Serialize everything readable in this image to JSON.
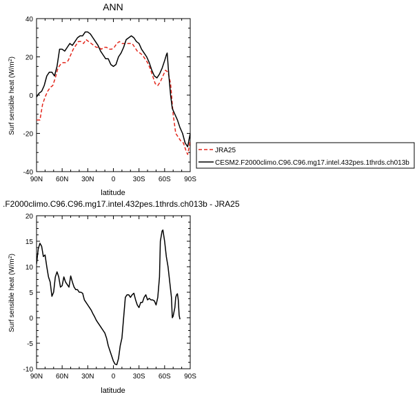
{
  "chart_data": [
    {
      "type": "line",
      "title": "ANN",
      "xlabel": "latitude",
      "ylabel": "Surf sensible heat (W/m²)",
      "xlim": [
        -90,
        90
      ],
      "ylim": [
        -40,
        40
      ],
      "x_ticks": [
        "90N",
        "60N",
        "30N",
        "0",
        "30S",
        "60S",
        "90S"
      ],
      "y_ticks": [
        "-40",
        "-20",
        "0",
        "20",
        "40"
      ],
      "legend_position": "right",
      "series": [
        {
          "name": "JRA25",
          "color": "#e3261b",
          "dash": "dashed",
          "points": [
            [
              -90,
              -13
            ],
            [
              -86,
              -13
            ],
            [
              -83,
              -5
            ],
            [
              -80,
              -1
            ],
            [
              -77,
              2
            ],
            [
              -74,
              4
            ],
            [
              -71,
              5
            ],
            [
              -68,
              9
            ],
            [
              -65,
              14
            ],
            [
              -62,
              16
            ],
            [
              -59,
              17
            ],
            [
              -56,
              17
            ],
            [
              -53,
              18
            ],
            [
              -50,
              21
            ],
            [
              -47,
              24
            ],
            [
              -44,
              26
            ],
            [
              -41,
              28
            ],
            [
              -38,
              28
            ],
            [
              -35,
              27
            ],
            [
              -32,
              29
            ],
            [
              -29,
              28
            ],
            [
              -26,
              27
            ],
            [
              -23,
              26
            ],
            [
              -20,
              25
            ],
            [
              -17,
              25
            ],
            [
              -14,
              24
            ],
            [
              -11,
              25
            ],
            [
              -8,
              25
            ],
            [
              -5,
              24
            ],
            [
              -2,
              24
            ],
            [
              1,
              25
            ],
            [
              4,
              27
            ],
            [
              7,
              28
            ],
            [
              10,
              27
            ],
            [
              13,
              27
            ],
            [
              16,
              27
            ],
            [
              19,
              27
            ],
            [
              22,
              27
            ],
            [
              25,
              25
            ],
            [
              28,
              23
            ],
            [
              31,
              22
            ],
            [
              34,
              21
            ],
            [
              37,
              19
            ],
            [
              40,
              17
            ],
            [
              43,
              14
            ],
            [
              46,
              10
            ],
            [
              49,
              6
            ],
            [
              52,
              5
            ],
            [
              55,
              7
            ],
            [
              58,
              10
            ],
            [
              61,
              13
            ],
            [
              64,
              12
            ],
            [
              67,
              6
            ],
            [
              70,
              -10
            ],
            [
              73,
              -20
            ],
            [
              76,
              -22
            ],
            [
              79,
              -24
            ],
            [
              82,
              -25
            ],
            [
              85,
              -29
            ],
            [
              87,
              -31
            ],
            [
              90,
              -24
            ]
          ]
        },
        {
          "name": "CESM2.F2000climo.C96.C96.mg17.intel.432pes.1thrds.ch013b",
          "color": "#000000",
          "dash": "solid",
          "points": [
            [
              -90,
              -1
            ],
            [
              -87,
              1
            ],
            [
              -84,
              2
            ],
            [
              -81,
              5
            ],
            [
              -78,
              10
            ],
            [
              -75,
              12
            ],
            [
              -72,
              12
            ],
            [
              -69,
              10
            ],
            [
              -66,
              15
            ],
            [
              -63,
              24
            ],
            [
              -60,
              24
            ],
            [
              -57,
              23
            ],
            [
              -54,
              25
            ],
            [
              -51,
              27
            ],
            [
              -48,
              26
            ],
            [
              -45,
              28
            ],
            [
              -42,
              30
            ],
            [
              -39,
              31
            ],
            [
              -36,
              31
            ],
            [
              -33,
              33
            ],
            [
              -30,
              33
            ],
            [
              -27,
              32
            ],
            [
              -24,
              30
            ],
            [
              -21,
              28
            ],
            [
              -18,
              26
            ],
            [
              -15,
              23
            ],
            [
              -12,
              21
            ],
            [
              -9,
              19
            ],
            [
              -6,
              19
            ],
            [
              -3,
              16
            ],
            [
              0,
              15
            ],
            [
              3,
              16
            ],
            [
              6,
              20
            ],
            [
              9,
              22
            ],
            [
              12,
              25
            ],
            [
              15,
              29
            ],
            [
              18,
              30
            ],
            [
              21,
              31
            ],
            [
              24,
              30
            ],
            [
              27,
              28
            ],
            [
              30,
              27
            ],
            [
              33,
              24
            ],
            [
              36,
              22
            ],
            [
              39,
              20
            ],
            [
              42,
              17
            ],
            [
              45,
              13
            ],
            [
              48,
              10
            ],
            [
              51,
              9
            ],
            [
              54,
              11
            ],
            [
              57,
              14
            ],
            [
              60,
              18
            ],
            [
              62,
              21
            ],
            [
              63,
              22
            ],
            [
              65,
              10
            ],
            [
              67,
              0
            ],
            [
              69,
              -7
            ],
            [
              72,
              -10
            ],
            [
              75,
              -13
            ],
            [
              78,
              -17
            ],
            [
              81,
              -20
            ],
            [
              84,
              -25
            ],
            [
              87,
              -27
            ],
            [
              90,
              -20
            ]
          ]
        }
      ]
    },
    {
      "type": "line",
      "title": ".F2000climo.C96.C96.mg17.intel.432pes.1thrds.ch013b - JRA25",
      "xlabel": "latitude",
      "ylabel": "Surf sensible heat (W/m²)",
      "xlim": [
        -90,
        90
      ],
      "ylim": [
        -10,
        20
      ],
      "x_ticks": [
        "90N",
        "60N",
        "30N",
        "0",
        "30S",
        "60S",
        "90S"
      ],
      "y_ticks": [
        "-10",
        "-5",
        "0",
        "5",
        "10",
        "15",
        "20"
      ],
      "series": [
        {
          "name": "",
          "color": "#000000",
          "dash": "solid",
          "points": [
            [
              -90,
              10.5
            ],
            [
              -88,
              13.5
            ],
            [
              -86,
              14.6
            ],
            [
              -84,
              14
            ],
            [
              -82,
              12
            ],
            [
              -80,
              12.3
            ],
            [
              -78,
              10
            ],
            [
              -76,
              8
            ],
            [
              -74,
              7
            ],
            [
              -72,
              4.2
            ],
            [
              -70,
              5
            ],
            [
              -68,
              8
            ],
            [
              -66,
              9
            ],
            [
              -64,
              8
            ],
            [
              -62,
              6
            ],
            [
              -60,
              6.3
            ],
            [
              -58,
              8
            ],
            [
              -56,
              7
            ],
            [
              -54,
              6.5
            ],
            [
              -52,
              6
            ],
            [
              -50,
              8.2
            ],
            [
              -48,
              7
            ],
            [
              -46,
              6
            ],
            [
              -44,
              5.5
            ],
            [
              -42,
              5.5
            ],
            [
              -40,
              5
            ],
            [
              -38,
              5
            ],
            [
              -36,
              4.8
            ],
            [
              -34,
              3.5
            ],
            [
              -32,
              3
            ],
            [
              -30,
              2.5
            ],
            [
              -28,
              2
            ],
            [
              -26,
              1.5
            ],
            [
              -24,
              0.8
            ],
            [
              -22,
              0.2
            ],
            [
              -20,
              -0.5
            ],
            [
              -18,
              -1
            ],
            [
              -16,
              -1.5
            ],
            [
              -14,
              -2
            ],
            [
              -12,
              -2.5
            ],
            [
              -10,
              -3
            ],
            [
              -8,
              -4
            ],
            [
              -6,
              -5.5
            ],
            [
              -4,
              -6.5
            ],
            [
              -2,
              -7.5
            ],
            [
              0,
              -8.5
            ],
            [
              2,
              -9.1
            ],
            [
              4,
              -9.2
            ],
            [
              6,
              -8
            ],
            [
              8,
              -5.5
            ],
            [
              10,
              -4
            ],
            [
              12,
              0
            ],
            [
              14,
              4
            ],
            [
              16,
              4.5
            ],
            [
              18,
              4.5
            ],
            [
              20,
              4
            ],
            [
              22,
              4.5
            ],
            [
              24,
              4.8
            ],
            [
              26,
              3.5
            ],
            [
              28,
              2.5
            ],
            [
              30,
              2
            ],
            [
              32,
              3
            ],
            [
              34,
              3
            ],
            [
              36,
              4
            ],
            [
              38,
              4.5
            ],
            [
              40,
              3.5
            ],
            [
              42,
              3.8
            ],
            [
              44,
              3.5
            ],
            [
              46,
              3.5
            ],
            [
              48,
              3.3
            ],
            [
              50,
              2.5
            ],
            [
              52,
              4
            ],
            [
              54,
              8
            ],
            [
              55,
              15
            ],
            [
              57,
              17
            ],
            [
              58,
              17.2
            ],
            [
              60,
              15
            ],
            [
              62,
              12
            ],
            [
              64,
              10
            ],
            [
              66,
              7
            ],
            [
              68,
              4
            ],
            [
              69,
              0
            ],
            [
              70,
              0.3
            ],
            [
              72,
              2
            ],
            [
              73,
              4
            ],
            [
              74,
              4.5
            ],
            [
              75,
              4.7
            ],
            [
              76,
              3.5
            ],
            [
              77,
              0.5
            ],
            [
              78,
              -0.3
            ]
          ]
        }
      ]
    }
  ]
}
